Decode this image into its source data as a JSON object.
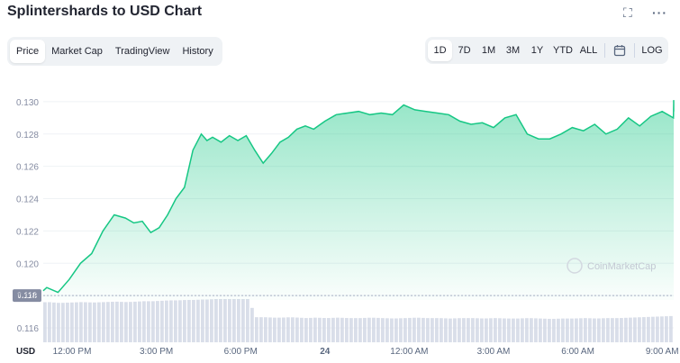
{
  "title": "Splintershards to USD Chart",
  "header_icons": {
    "expand": "expand-icon",
    "more": "···"
  },
  "tabs": [
    "Price",
    "Market Cap",
    "TradingView",
    "History"
  ],
  "active_tab": "Price",
  "ranges": [
    "1D",
    "7D",
    "1M",
    "3M",
    "1Y",
    "YTD",
    "ALL"
  ],
  "active_range": "1D",
  "log_label": "LOG",
  "currency_label": "USD",
  "current_price_label": "0.118",
  "watermark": "CoinMarketCap",
  "colors": {
    "line": "#16c784",
    "fill_top": "#16c784",
    "volume": "#cfd6e4",
    "label_bg": "#858ca2"
  },
  "chart_data": {
    "type": "area",
    "title": "",
    "ylabel": "",
    "xlabel": "",
    "ylim": [
      0.1155,
      0.131
    ],
    "yticks": [
      0.116,
      0.118,
      0.12,
      0.122,
      0.124,
      0.126,
      0.128,
      0.13
    ],
    "ytick_labels": [
      "0.116",
      "0.118",
      "0.120",
      "0.122",
      "0.124",
      "0.126",
      "0.128",
      "0.130"
    ],
    "xtick_labels": [
      "12:00 PM",
      "3:00 PM",
      "6:00 PM",
      "24",
      "12:00 AM",
      "3:00 AM",
      "6:00 AM",
      "9:00 AM"
    ],
    "xtick_hours": [
      0,
      3,
      6,
      9,
      12,
      15,
      18,
      21
    ],
    "x_hours": [
      -1.3,
      -0.9,
      -0.5,
      -0.1,
      0.3,
      0.7,
      1.1,
      1.5,
      1.9,
      2.2,
      2.5,
      2.8,
      3.1,
      3.4,
      3.7,
      4.0,
      4.3,
      4.6,
      4.8,
      5.0,
      5.3,
      5.6,
      5.9,
      6.2,
      6.5,
      6.8,
      7.1,
      7.4,
      7.7,
      8.0,
      8.3,
      8.6,
      9.0,
      9.4,
      9.8,
      10.2,
      10.6,
      11.0,
      11.4,
      11.8,
      12.2,
      12.6,
      13.0,
      13.4,
      13.8,
      14.2,
      14.6,
      15.0,
      15.4,
      15.8,
      16.2,
      16.6,
      17.0,
      17.4,
      17.8,
      18.2,
      18.6,
      19.0,
      19.4,
      19.8,
      20.2,
      20.6,
      21.0,
      21.4,
      21.8,
      22.2,
      22.6,
      23.0,
      23.2
    ],
    "y_price": [
      0.1183,
      0.1185,
      0.1182,
      0.119,
      0.12,
      0.1206,
      0.122,
      0.123,
      0.1228,
      0.1225,
      0.1226,
      0.1219,
      0.1222,
      0.123,
      0.124,
      0.1247,
      0.127,
      0.128,
      0.1276,
      0.1278,
      0.1275,
      0.1279,
      0.1276,
      0.1279,
      0.127,
      0.1262,
      0.1268,
      0.1275,
      0.1278,
      0.1283,
      0.1285,
      0.1283,
      0.1288,
      0.1292,
      0.1293,
      0.1294,
      0.1292,
      0.1293,
      0.1292,
      0.1298,
      0.1295,
      0.1294,
      0.1293,
      0.1292,
      0.1288,
      0.1286,
      0.1287,
      0.1284,
      0.129,
      0.1292,
      0.128,
      0.1277,
      0.1277,
      0.128,
      0.1284,
      0.1282,
      0.1286,
      0.128,
      0.1283,
      0.129,
      0.1285,
      0.1291,
      0.1294,
      0.129,
      0.1299,
      0.1294,
      0.1301,
      0.1297,
      0.1299
    ],
    "volume_relative": [
      0.92,
      0.93,
      0.91,
      0.92,
      0.93,
      0.92,
      0.93,
      0.94,
      0.93,
      0.94,
      0.95,
      0.95,
      0.96,
      0.97,
      0.97,
      0.98,
      0.98,
      0.99,
      0.99,
      1.0,
      1.0,
      1.0,
      1.0,
      1.0,
      0.58,
      0.58,
      0.57,
      0.57,
      0.58,
      0.57,
      0.56,
      0.57,
      0.56,
      0.57,
      0.56,
      0.56,
      0.57,
      0.56,
      0.55,
      0.56,
      0.57,
      0.56,
      0.56,
      0.55,
      0.56,
      0.56,
      0.55,
      0.56,
      0.55,
      0.55,
      0.56,
      0.55,
      0.54,
      0.55,
      0.55,
      0.56,
      0.55,
      0.56,
      0.56,
      0.57,
      0.58,
      0.59,
      0.6,
      0.61,
      0.62,
      0.63,
      0.64,
      0.65,
      0.66
    ],
    "current_value": 0.118,
    "grid": true,
    "legend": "none"
  }
}
